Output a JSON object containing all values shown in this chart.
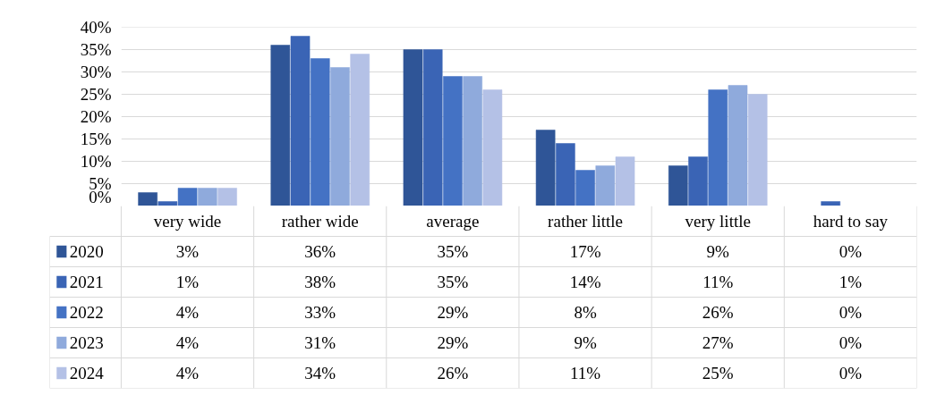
{
  "chart_data": {
    "type": "bar",
    "categories": [
      "very wide",
      "rather wide",
      "average",
      "rather little",
      "very little",
      "hard to say"
    ],
    "series": [
      {
        "name": "2020",
        "color": "#2f5597",
        "values": [
          3,
          36,
          35,
          17,
          9,
          0
        ],
        "value_labels": [
          "3%",
          "36%",
          "35%",
          "17%",
          "9%",
          "0%"
        ]
      },
      {
        "name": "2021",
        "color": "#3a64b5",
        "values": [
          1,
          38,
          35,
          14,
          11,
          1
        ],
        "value_labels": [
          "1%",
          "38%",
          "35%",
          "14%",
          "11%",
          "1%"
        ]
      },
      {
        "name": "2022",
        "color": "#4472c4",
        "values": [
          4,
          33,
          29,
          8,
          26,
          0
        ],
        "value_labels": [
          "4%",
          "33%",
          "29%",
          "8%",
          "26%",
          "0%"
        ]
      },
      {
        "name": "2023",
        "color": "#8faadc",
        "values": [
          4,
          31,
          29,
          9,
          27,
          0
        ],
        "value_labels": [
          "4%",
          "31%",
          "29%",
          "9%",
          "27%",
          "0%"
        ]
      },
      {
        "name": "2024",
        "color": "#b4c1e6",
        "values": [
          4,
          34,
          26,
          11,
          25,
          0
        ],
        "value_labels": [
          "4%",
          "34%",
          "26%",
          "11%",
          "25%",
          "0%"
        ]
      }
    ],
    "ylim": [
      0,
      40
    ],
    "yticks": [
      {
        "value": 0,
        "label": "0%"
      },
      {
        "value": 5,
        "label": "5%"
      },
      {
        "value": 10,
        "label": "10%"
      },
      {
        "value": 15,
        "label": "15%"
      },
      {
        "value": 20,
        "label": "20%"
      },
      {
        "value": 25,
        "label": "25%"
      },
      {
        "value": 30,
        "label": "30%"
      },
      {
        "value": 35,
        "label": "35%"
      },
      {
        "value": 40,
        "label": "40%"
      }
    ],
    "grid": "y",
    "legend": "bottom"
  }
}
